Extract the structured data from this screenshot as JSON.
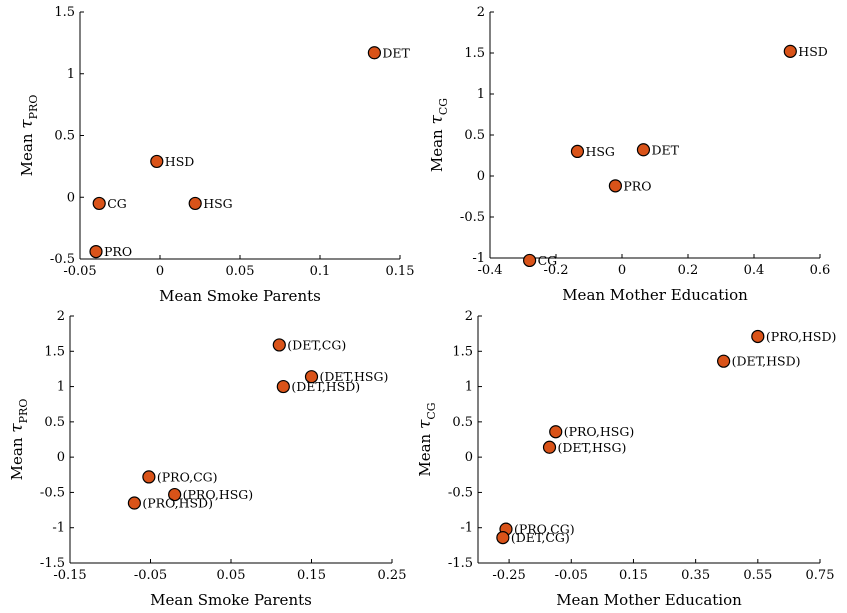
{
  "chart_data": [
    {
      "type": "scatter",
      "xlabel": "Mean Smoke Parents",
      "ylabel_main": "Mean",
      "ylabel_sym": "τ",
      "ylabel_sub": "PRO",
      "xlim": [
        -0.05,
        0.15
      ],
      "ylim": [
        -0.5,
        1.5
      ],
      "xticks": [
        -0.05,
        0,
        0.05,
        0.1,
        0.15
      ],
      "xtick_labels": [
        "-0.05",
        "0",
        "0.05",
        "0.1",
        "0.15"
      ],
      "yticks": [
        -0.5,
        0,
        0.5,
        1,
        1.5
      ],
      "ytick_labels": [
        "-0.5",
        "0",
        "0.5",
        "1",
        "1.5"
      ],
      "grid": false,
      "points": [
        {
          "label": "DET",
          "x": 0.134,
          "y": 1.17
        },
        {
          "label": "HSD",
          "x": -0.002,
          "y": 0.29
        },
        {
          "label": "CG",
          "x": -0.038,
          "y": -0.05
        },
        {
          "label": "HSG",
          "x": 0.022,
          "y": -0.05
        },
        {
          "label": "PRO",
          "x": -0.04,
          "y": -0.44
        }
      ]
    },
    {
      "type": "scatter",
      "xlabel": "Mean Mother Education",
      "ylabel_main": "Mean",
      "ylabel_sym": "τ",
      "ylabel_sub": "CG",
      "xlim": [
        -0.4,
        0.6
      ],
      "ylim": [
        -1,
        2
      ],
      "xticks": [
        -0.4,
        -0.2,
        0,
        0.2,
        0.4,
        0.6
      ],
      "xtick_labels": [
        "-0.4",
        "-0.2",
        "0",
        "0.2",
        "0.4",
        "0.6"
      ],
      "yticks": [
        -1,
        -0.5,
        0,
        0.5,
        1,
        1.5,
        2
      ],
      "ytick_labels": [
        "-1",
        "-0.5",
        "0",
        "0.5",
        "1",
        "1.5",
        "2"
      ],
      "grid": false,
      "points": [
        {
          "label": "HSD",
          "x": 0.51,
          "y": 1.52
        },
        {
          "label": "HSG",
          "x": -0.135,
          "y": 0.3
        },
        {
          "label": "DET",
          "x": 0.065,
          "y": 0.32
        },
        {
          "label": "PRO",
          "x": -0.02,
          "y": -0.12
        },
        {
          "label": "CG",
          "x": -0.28,
          "y": -1.03
        }
      ]
    },
    {
      "type": "scatter",
      "xlabel": "Mean Smoke Parents",
      "ylabel_main": "Mean",
      "ylabel_sym": "τ",
      "ylabel_sub": "PRO",
      "xlim": [
        -0.15,
        0.25
      ],
      "ylim": [
        -1.5,
        2
      ],
      "xticks": [
        -0.15,
        -0.05,
        0.05,
        0.15,
        0.25
      ],
      "xtick_labels": [
        "-0.15",
        "-0.05",
        "0.05",
        "0.15",
        "0.25"
      ],
      "yticks": [
        -1.5,
        -1,
        -0.5,
        0,
        0.5,
        1,
        1.5,
        2
      ],
      "ytick_labels": [
        "-1.5",
        "-1",
        "-0.5",
        "0",
        "0.5",
        "1",
        "1.5",
        "2"
      ],
      "grid": false,
      "points": [
        {
          "label": "(DET,CG)",
          "x": 0.11,
          "y": 1.59
        },
        {
          "label": "(DET,HSG)",
          "x": 0.15,
          "y": 1.14
        },
        {
          "label": "(DET,HSD)",
          "x": 0.115,
          "y": 1.0
        },
        {
          "label": "(PRO,CG)",
          "x": -0.052,
          "y": -0.28
        },
        {
          "label": "(PRO,HSG)",
          "x": -0.02,
          "y": -0.53
        },
        {
          "label": "(PRO,HSD)",
          "x": -0.07,
          "y": -0.65
        }
      ]
    },
    {
      "type": "scatter",
      "xlabel": "Mean Mother Education",
      "ylabel_main": "Mean",
      "ylabel_sym": "τ",
      "ylabel_sub": "CG",
      "xlim": [
        -0.35,
        0.75
      ],
      "ylim": [
        -1.5,
        2
      ],
      "xticks": [
        -0.25,
        -0.05,
        0.15,
        0.35,
        0.55,
        0.75
      ],
      "xtick_labels": [
        "-0.25",
        "-0.05",
        "0.15",
        "0.35",
        "0.55",
        "0.75"
      ],
      "yticks": [
        -1.5,
        -1,
        -0.5,
        0,
        0.5,
        1,
        1.5,
        2
      ],
      "ytick_labels": [
        "-1.5",
        "-1",
        "-0.5",
        "0",
        "0.5",
        "1",
        "1.5",
        "2"
      ],
      "grid": false,
      "points": [
        {
          "label": "(PRO,HSD)",
          "x": 0.55,
          "y": 1.71
        },
        {
          "label": "(DET,HSD)",
          "x": 0.44,
          "y": 1.36
        },
        {
          "label": "(PRO,HSG)",
          "x": -0.1,
          "y": 0.36
        },
        {
          "label": "(DET,HSG)",
          "x": -0.12,
          "y": 0.14
        },
        {
          "label": "(PRO,CG)",
          "x": -0.26,
          "y": -1.02
        },
        {
          "label": "(DET,CG)",
          "x": -0.27,
          "y": -1.14
        }
      ]
    }
  ]
}
